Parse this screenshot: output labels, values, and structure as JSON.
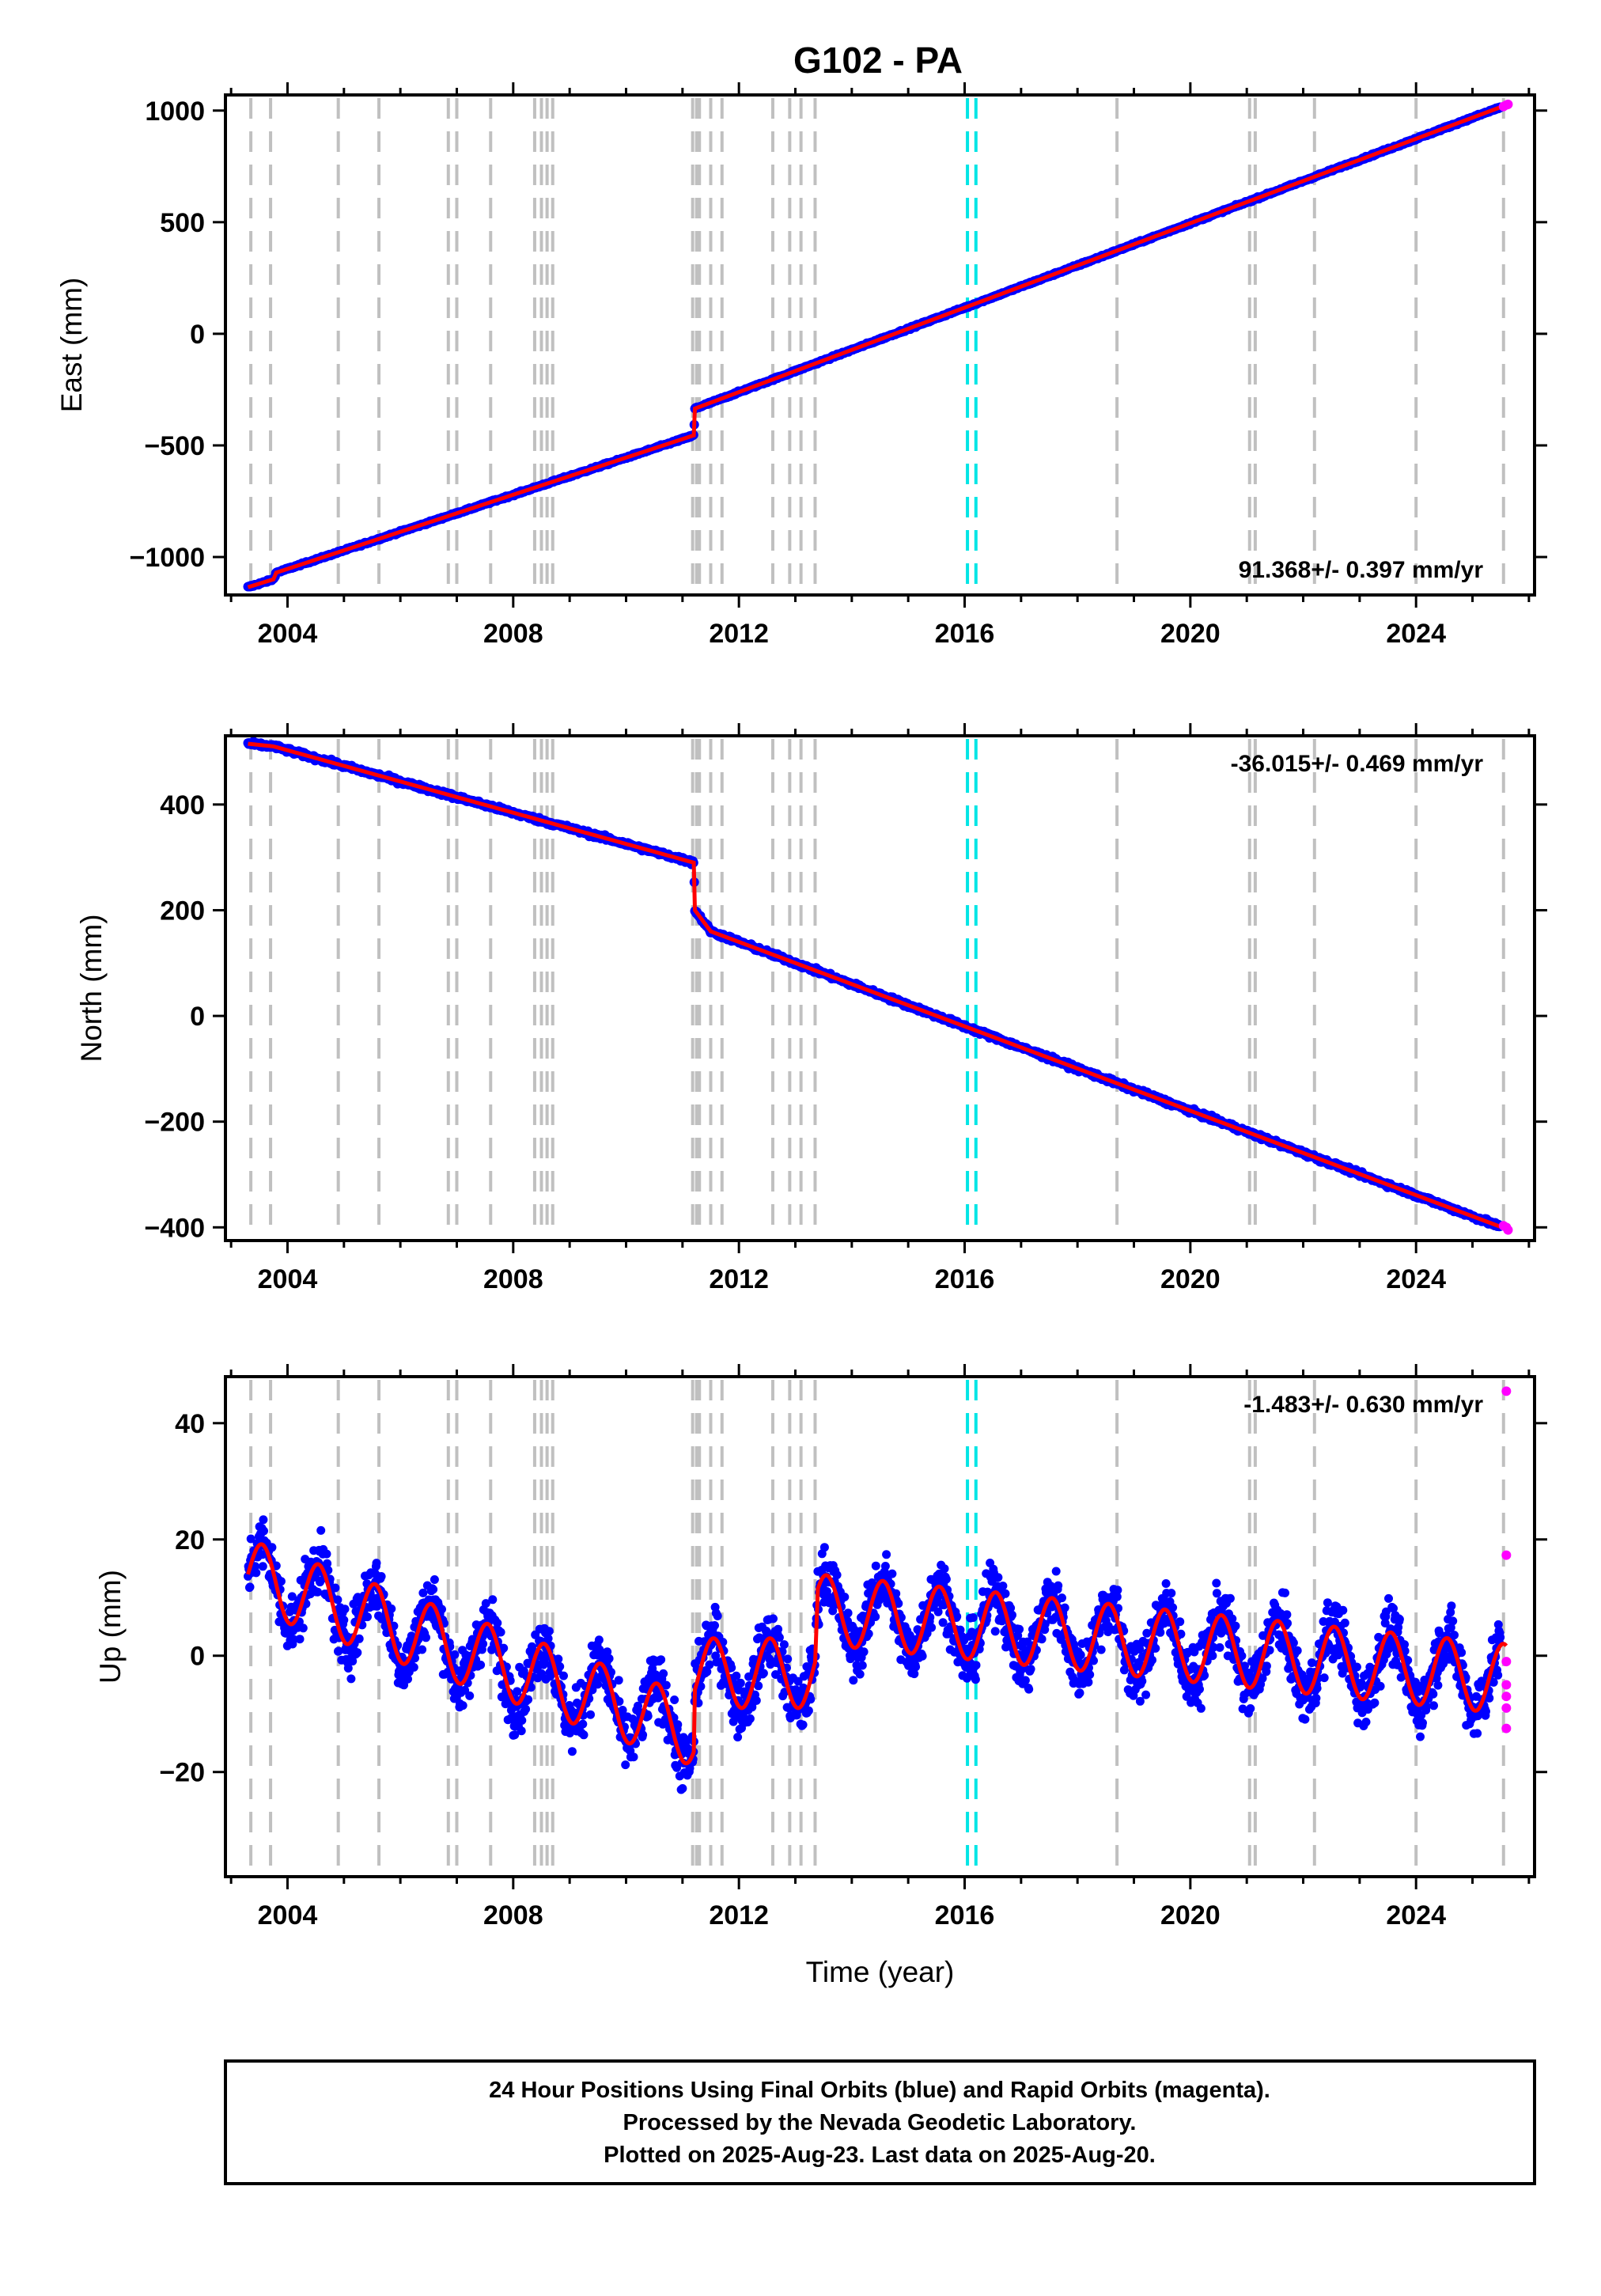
{
  "title": "G102 - PA",
  "footer": {
    "line1": "24 Hour Positions Using Final Orbits (blue) and Rapid Orbits (magenta).",
    "line2": "Processed by the Nevada Geodetic Laboratory.",
    "line3": "Plotted on 2025-Aug-23. Last data on 2025-Aug-20."
  },
  "colors": {
    "final_orbits": "#0000ff",
    "rapid_orbits": "#ff00ff",
    "model": "#ff0000",
    "event_lines": "#c0c0c0",
    "antenna_change": "#00e5e5"
  },
  "chart_data": [
    {
      "type": "scatter",
      "name": "east",
      "ylabel": "East (mm)",
      "xlabel": "",
      "xlim": [
        2002.9,
        2026.1
      ],
      "ylim": [
        -1170,
        1070
      ],
      "x_ticks": [
        2004,
        2008,
        2012,
        2016,
        2020,
        2024
      ],
      "y_ticks": [
        -1000,
        -500,
        0,
        500,
        1000
      ],
      "rate_text": "91.368+/- 0.397 mm/yr",
      "rate_position": "bottom-right",
      "trend": [
        [
          2003.3,
          -1135
        ],
        [
          2003.75,
          -1100
        ],
        [
          2003.8,
          -1070
        ],
        [
          2011.2,
          -455
        ],
        [
          2011.22,
          -335
        ],
        [
          2025.6,
          1025
        ]
      ],
      "rapid_points": [
        [
          2025.55,
          1018
        ],
        [
          2025.6,
          1025
        ],
        [
          2025.63,
          1028
        ]
      ]
    },
    {
      "type": "scatter",
      "name": "north",
      "ylabel": "North (mm)",
      "xlabel": "",
      "xlim": [
        2002.9,
        2026.1
      ],
      "ylim": [
        -425,
        530
      ],
      "x_ticks": [
        2004,
        2008,
        2012,
        2016,
        2020,
        2024
      ],
      "y_ticks": [
        -400,
        -200,
        0,
        200,
        400
      ],
      "rate_text": "-36.015+/- 0.469 mm/yr",
      "rate_position": "top-right",
      "trend": [
        [
          2003.3,
          515
        ],
        [
          2003.75,
          510
        ],
        [
          2011.2,
          290
        ],
        [
          2011.22,
          200
        ],
        [
          2011.5,
          160
        ],
        [
          2025.6,
          -403
        ]
      ],
      "rapid_points": [
        [
          2025.55,
          -397
        ],
        [
          2025.6,
          -400
        ],
        [
          2025.63,
          -405
        ]
      ]
    },
    {
      "type": "scatter",
      "name": "up",
      "ylabel": "Up (mm)",
      "xlabel": "Time (year)",
      "xlim": [
        2002.9,
        2026.1
      ],
      "ylim": [
        -38,
        48
      ],
      "x_ticks": [
        2004,
        2008,
        2012,
        2016,
        2020,
        2024
      ],
      "y_ticks": [
        -20,
        0,
        20,
        40
      ],
      "rate_text": "-1.483+/- 0.630 mm/yr",
      "rate_position": "top-right",
      "seasonal_amplitude": 6,
      "trend": [
        [
          2003.3,
          14
        ],
        [
          2011.2,
          -13
        ],
        [
          2011.22,
          -3
        ],
        [
          2013.35,
          -3
        ],
        [
          2013.4,
          8
        ],
        [
          2025.6,
          -4
        ]
      ],
      "rapid_points": [
        [
          2025.6,
          45.5
        ],
        [
          2025.6,
          17.3
        ],
        [
          2025.6,
          -1
        ],
        [
          2025.6,
          -5
        ],
        [
          2025.6,
          -7
        ],
        [
          2025.6,
          -9
        ],
        [
          2025.6,
          -12.5
        ]
      ]
    }
  ],
  "event_years": {
    "gray": [
      2003.35,
      2003.7,
      2004.9,
      2005.62,
      2006.85,
      2007.0,
      2007.6,
      2008.38,
      2008.5,
      2008.6,
      2008.7,
      2011.18,
      2011.25,
      2011.3,
      2011.5,
      2011.7,
      2012.6,
      2012.9,
      2013.1,
      2013.35,
      2018.7,
      2021.05,
      2021.15,
      2022.2,
      2024.0,
      2025.55
    ],
    "cyan": [
      2016.05,
      2016.2
    ]
  }
}
